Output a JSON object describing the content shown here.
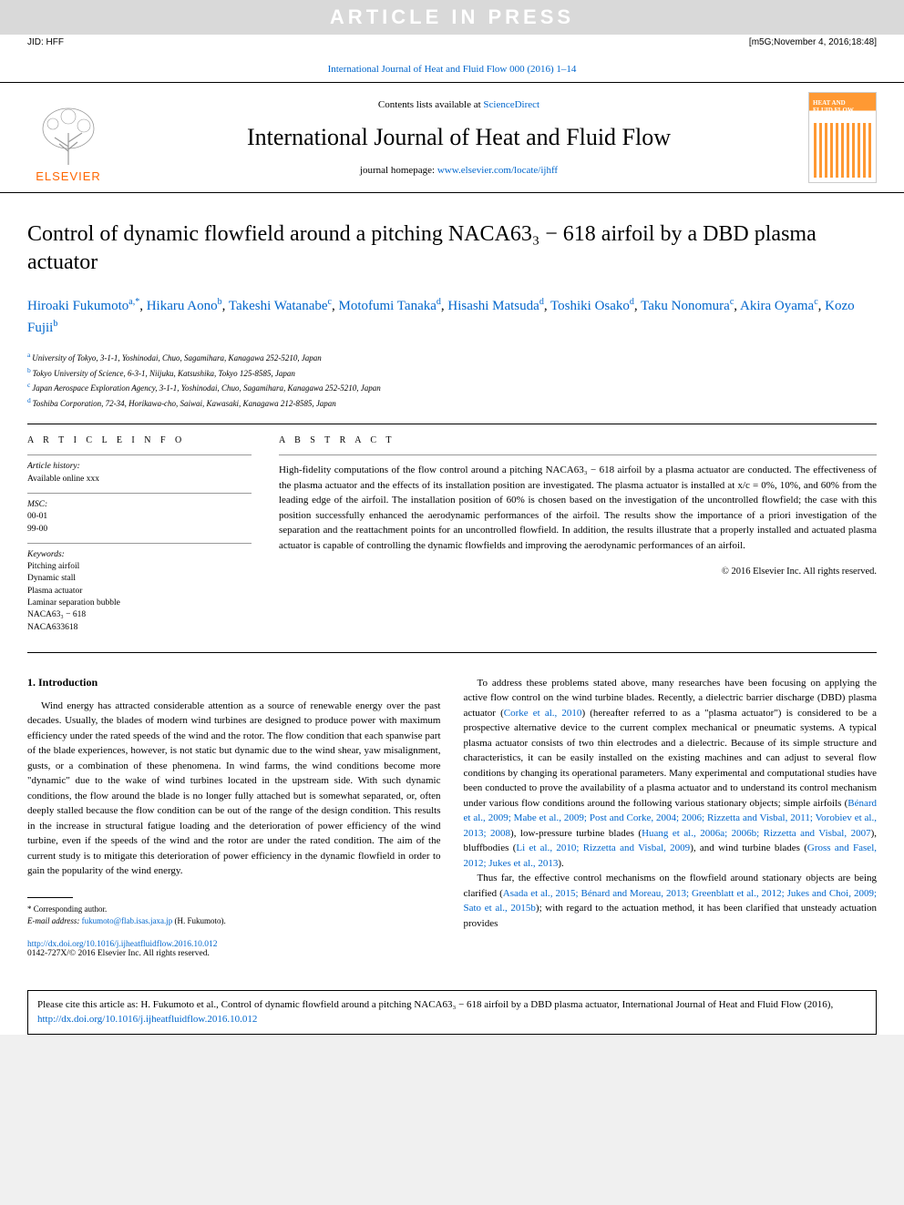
{
  "press_banner": "ARTICLE IN PRESS",
  "jid": "JID: HFF",
  "date_stamp": "[m5G;November 4, 2016;18:48]",
  "journal_ref": "International Journal of Heat and Fluid Flow 000 (2016) 1–14",
  "contents_prefix": "Contents lists available at ",
  "sciencedirect": "ScienceDirect",
  "journal_name": "International Journal of Heat and Fluid Flow",
  "homepage_prefix": "journal homepage: ",
  "homepage_url": "www.elsevier.com/locate/ijhff",
  "elsevier": "ELSEVIER",
  "cover_title": "HEAT AND\nFLUID FLOW",
  "title": "Control of dynamic flowfield around a pitching NACA63₃ − 618 airfoil by a DBD plasma actuator",
  "authors": [
    {
      "name": "Hiroaki Fukumoto",
      "sup": "a,*"
    },
    {
      "name": "Hikaru Aono",
      "sup": "b"
    },
    {
      "name": "Takeshi Watanabe",
      "sup": "c"
    },
    {
      "name": "Motofumi Tanaka",
      "sup": "d"
    },
    {
      "name": "Hisashi Matsuda",
      "sup": "d"
    },
    {
      "name": "Toshiki Osako",
      "sup": "d"
    },
    {
      "name": "Taku Nonomura",
      "sup": "c"
    },
    {
      "name": "Akira Oyama",
      "sup": "c"
    },
    {
      "name": "Kozo Fujii",
      "sup": "b"
    }
  ],
  "affiliations": [
    {
      "sup": "a",
      "text": "University of Tokyo, 3-1-1, Yoshinodai, Chuo, Sagamihara, Kanagawa 252-5210, Japan"
    },
    {
      "sup": "b",
      "text": "Tokyo University of Science, 6-3-1, Niijuku, Katsushika, Tokyo 125-8585, Japan"
    },
    {
      "sup": "c",
      "text": "Japan Aerospace Exploration Agency, 3-1-1, Yoshinodai, Chuo, Sagamihara, Kanagawa 252-5210, Japan"
    },
    {
      "sup": "d",
      "text": "Toshiba Corporation, 72-34, Horikawa-cho, Saiwai, Kawasaki, Kanagawa 212-8585, Japan"
    }
  ],
  "info_heading": "A R T I C L E  I N F O",
  "abstract_heading": "A B S T R A C T",
  "history_label": "Article history:",
  "history_text": "Available online xxx",
  "msc_label": "MSC:",
  "msc_items": [
    "00-01",
    "99-00"
  ],
  "keywords_label": "Keywords:",
  "keywords": [
    "Pitching airfoil",
    "Dynamic stall",
    "Plasma actuator",
    "Laminar separation bubble",
    "NACA63₃ − 618",
    "NACA633618"
  ],
  "abstract_text": "High-fidelity computations of the flow control around a pitching NACA63₃ − 618 airfoil by a plasma actuator are conducted. The effectiveness of the plasma actuator and the effects of its installation position are investigated. The plasma actuator is installed at x/c = 0%, 10%, and 60% from the leading edge of the airfoil. The installation position of 60% is chosen based on the investigation of the uncontrolled flowfield; the case with this position successfully enhanced the aerodynamic performances of the airfoil. The results show the importance of a priori investigation of the separation and the reattachment points for an uncontrolled flowfield. In addition, the results illustrate that a properly installed and actuated plasma actuator is capable of controlling the dynamic flowfields and improving the aerodynamic performances of an airfoil.",
  "copyright": "© 2016 Elsevier Inc. All rights reserved.",
  "intro_heading": "1. Introduction",
  "col1_p1": "Wind energy has attracted considerable attention as a source of renewable energy over the past decades. Usually, the blades of modern wind turbines are designed to produce power with maximum efficiency under the rated speeds of the wind and the rotor. The flow condition that each spanwise part of the blade experiences, however, is not static but dynamic due to the wind shear, yaw misalignment, gusts, or a combination of these phenomena. In wind farms, the wind conditions become more \"dynamic\" due to the wake of wind turbines located in the upstream side. With such dynamic conditions, the flow around the blade is no longer fully attached but is somewhat separated, or, often deeply stalled because the flow condition can be out of the range of the design condition. This results in the increase in structural fatigue loading and the deterioration of power efficiency of the wind turbine, even if the speeds of the wind and the rotor are under the rated condition. The aim of the current study is to mitigate this deterioration of power efficiency in the dynamic flowfield in order to gain the popularity of the wind energy.",
  "col2_p1_a": "To address these problems stated above, many researches have been focusing on applying the active flow control on the wind turbine blades. Recently, a dielectric barrier discharge (DBD) plasma actuator (",
  "col2_cite1": "Corke et al., 2010",
  "col2_p1_b": ") (hereafter referred to as a \"plasma actuator\") is considered to be a prospective alternative device to the current complex mechanical or pneumatic systems. A typical plasma actuator consists of two thin electrodes and a dielectric. Because of its simple structure and characteristics, it can be easily installed on the existing machines and can adjust to several flow conditions by changing its operational parameters. Many experimental and computational studies have been conducted to prove the availability of a plasma actuator and to understand its control mechanism under various flow conditions around the following various stationary objects; simple airfoils (",
  "col2_cite2": "Bénard et al., 2009; Mabe et al., 2009; Post and Corke, 2004; 2006; Rizzetta and Visbal, 2011; Vorobiev et al., 2013; 2008",
  "col2_p1_c": "), low-pressure turbine blades (",
  "col2_cite3": "Huang et al., 2006a; 2006b; Rizzetta and Visbal, 2007",
  "col2_p1_d": "), bluffbodies (",
  "col2_cite4": "Li et al., 2010; Rizzetta and Visbal, 2009",
  "col2_p1_e": "), and wind turbine blades (",
  "col2_cite5": "Gross and Fasel, 2012; Jukes et al., 2013",
  "col2_p1_f": ").",
  "col2_p2_a": "Thus far, the effective control mechanisms on the flowfield around stationary objects are being clarified (",
  "col2_cite6": "Asada et al., 2015; Bénard and Moreau, 2013; Greenblatt et al., 2012; Jukes and Choi, 2009; Sato et al., 2015b",
  "col2_p2_b": "); with regard to the actuation method, it has been clarified that unsteady actuation provides",
  "corresponding": "* Corresponding author.",
  "email_label": "E-mail address: ",
  "email": "fukumoto@flab.isas.jaxa.jp",
  "email_suffix": " (H. Fukumoto).",
  "doi_url": "http://dx.doi.org/10.1016/j.ijheatfluidflow.2016.10.012",
  "issn_line": "0142-727X/© 2016 Elsevier Inc. All rights reserved.",
  "cite_box_a": "Please cite this article as: H. Fukumoto et al., Control of dynamic flowfield around a pitching NACA63₃ − 618 airfoil by a DBD plasma actuator, International Journal of Heat and Fluid Flow (2016), ",
  "cite_box_link": "http://dx.doi.org/10.1016/j.ijheatfluidflow.2016.10.012",
  "colors": {
    "link": "#0066cc",
    "banner_bg": "#d9d9d9",
    "banner_text": "#ffffff",
    "elsevier_orange": "#ff6600",
    "cover_orange": "#ff9933"
  }
}
